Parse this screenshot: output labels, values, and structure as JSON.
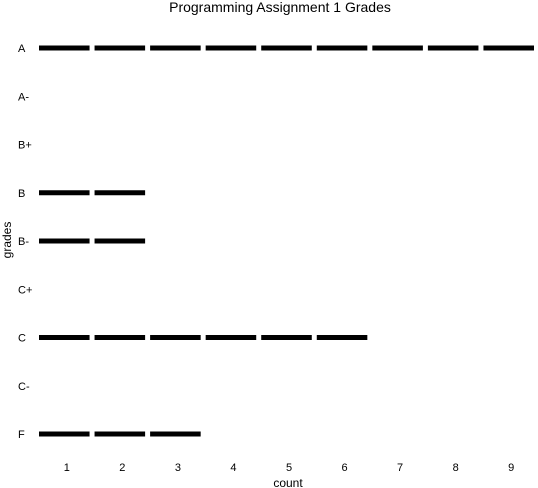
{
  "chart_data": {
    "type": "bar",
    "title": "Programming Assignment 1 Grades",
    "xlabel": "count",
    "ylabel": "grades",
    "categories": [
      "A",
      "A-",
      "B+",
      "B",
      "B-",
      "C+",
      "C",
      "C-",
      "F"
    ],
    "values": [
      9,
      0,
      0,
      2,
      2,
      0,
      6,
      0,
      3
    ],
    "x_ticks": [
      1,
      2,
      3,
      4,
      5,
      6,
      7,
      8,
      9
    ],
    "xlim": [
      0.5,
      9.5
    ],
    "grid": false,
    "legend": "none",
    "bar_color": "#000000",
    "style": "segmented-bars"
  }
}
